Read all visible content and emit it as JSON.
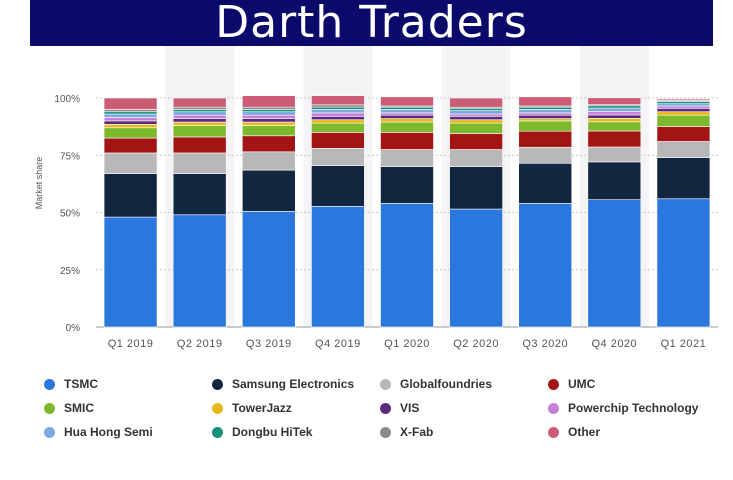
{
  "header": {
    "title": "Darth Traders"
  },
  "chart_data": {
    "type": "bar",
    "stacked": true,
    "ylabel": "Market share",
    "ylim": [
      0,
      100
    ],
    "yticks": [
      "0%",
      "25%",
      "50%",
      "75%",
      "100%"
    ],
    "grid": true,
    "legend_position": "bottom",
    "categories": [
      "Q1 2019",
      "Q2 2019",
      "Q3 2019",
      "Q4 2019",
      "Q1 2020",
      "Q2 2020",
      "Q3 2020",
      "Q4 2020",
      "Q1 2021"
    ],
    "series": [
      {
        "name": "TSMC",
        "color": "#2a77dd",
        "values": [
          48,
          49,
          50.5,
          52.7,
          54,
          51.5,
          54,
          55.6,
          56
        ]
      },
      {
        "name": "Samsung Electronics",
        "color": "#12263f",
        "values": [
          19,
          18,
          18,
          17.8,
          16,
          18.5,
          17.5,
          16.5,
          18
        ]
      },
      {
        "name": "Globalfoundries",
        "color": "#b8b8b8",
        "values": [
          9,
          9,
          8,
          7.5,
          7.5,
          7.5,
          7,
          6.5,
          7
        ]
      },
      {
        "name": "UMC",
        "color": "#a31515",
        "values": [
          6.5,
          7,
          7,
          7,
          7.5,
          7,
          7,
          7,
          6.5
        ]
      },
      {
        "name": "SMIC",
        "color": "#7db92d",
        "values": [
          4.5,
          5,
          4.5,
          4,
          4.5,
          4.5,
          4.5,
          4,
          5
        ]
      },
      {
        "name": "TowerJazz",
        "color": "#e8b91c",
        "values": [
          1.5,
          1.5,
          1.5,
          1.5,
          1.5,
          1.5,
          1,
          1.5,
          1.5
        ]
      },
      {
        "name": "VIS",
        "color": "#5b2a7a",
        "values": [
          1.5,
          1.5,
          1.5,
          1.5,
          1.5,
          1.5,
          1.5,
          1.5,
          1.5
        ]
      },
      {
        "name": "Powerchip Technology",
        "color": "#c77fd8",
        "values": [
          1.5,
          1.5,
          1.5,
          1.5,
          1,
          1,
          1,
          1.5,
          1
        ]
      },
      {
        "name": "Hua Hong Semi",
        "color": "#7aaae0",
        "values": [
          1.5,
          1.5,
          1.5,
          1.5,
          1.5,
          1.5,
          1.5,
          1.5,
          1
        ]
      },
      {
        "name": "Dongbu HiTek",
        "color": "#168f7b",
        "values": [
          1,
          1,
          1,
          1,
          1,
          1,
          1,
          1,
          1
        ]
      },
      {
        "name": "X-Fab",
        "color": "#8a8a8a",
        "values": [
          1,
          1,
          1,
          1,
          0.5,
          0.5,
          0.5,
          0.5,
          0.5
        ]
      },
      {
        "name": "Other",
        "color": "#cc5c76",
        "values": [
          5,
          4,
          5,
          4,
          4,
          4,
          4,
          3,
          0.5
        ]
      }
    ]
  }
}
